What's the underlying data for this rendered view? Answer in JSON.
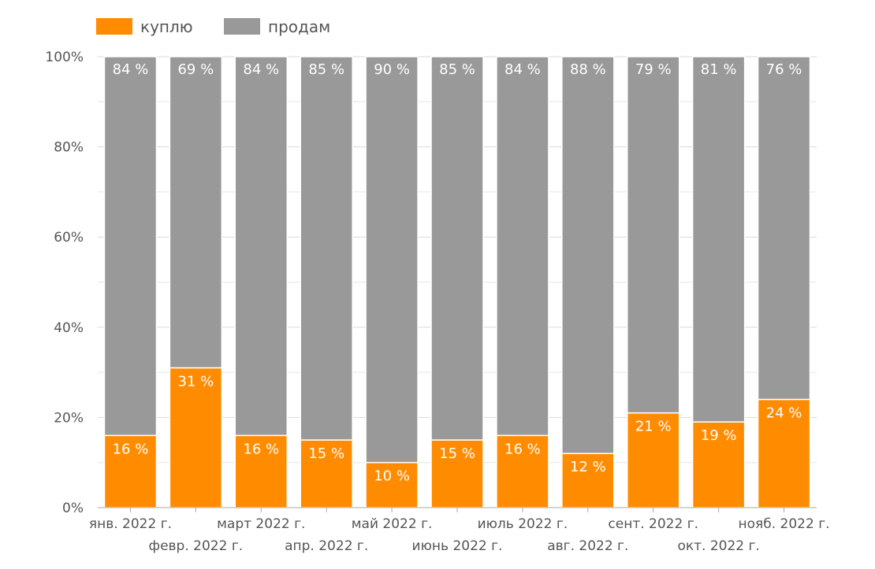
{
  "chart_data": {
    "type": "bar",
    "stacked": true,
    "percent": true,
    "categories": [
      "янв. 2022 г.",
      "февр. 2022 г.",
      "март 2022 г.",
      "апр. 2022 г.",
      "май 2022 г.",
      "июнь 2022 г.",
      "июль 2022 г.",
      "авг. 2022 г.",
      "сент. 2022 г.",
      "окт. 2022 г.",
      "нояб. 2022 г."
    ],
    "series": [
      {
        "name": "куплю",
        "color": "#ff8c00",
        "values": [
          16,
          31,
          16,
          15,
          10,
          15,
          16,
          12,
          21,
          19,
          24
        ],
        "labels": [
          "16 %",
          "31 %",
          "16 %",
          "15 %",
          "10 %",
          "15 %",
          "16 %",
          "12 %",
          "21 %",
          "19 %",
          "24 %"
        ]
      },
      {
        "name": "продам",
        "color": "#999999",
        "values": [
          84,
          69,
          84,
          85,
          90,
          85,
          84,
          88,
          79,
          81,
          76
        ],
        "labels": [
          "84 %",
          "69 %",
          "84 %",
          "85 %",
          "90 %",
          "85 %",
          "84 %",
          "88 %",
          "79 %",
          "81 %",
          "76 %"
        ]
      }
    ],
    "y_ticks": [
      "0%",
      "20%",
      "40%",
      "60%",
      "80%",
      "100%"
    ],
    "ylim": [
      0,
      100
    ],
    "grid": true,
    "legend_position": "top-left",
    "title": "",
    "xlabel": "",
    "ylabel": ""
  }
}
